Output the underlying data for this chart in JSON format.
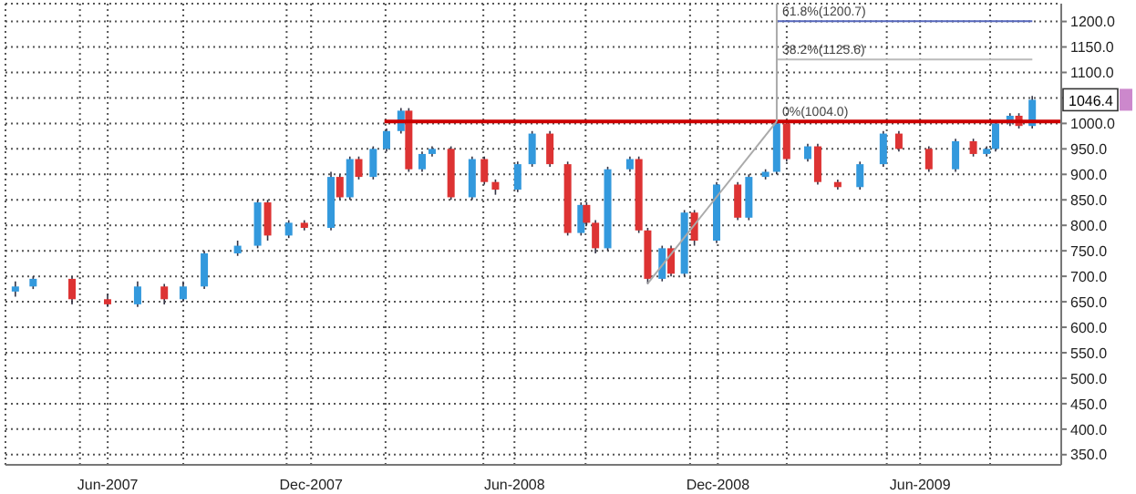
{
  "chart_data": {
    "type": "candlestick",
    "x": [
      "2007-03-10",
      "2007-03-26",
      "2007-04-30",
      "2007-06-01",
      "2007-06-28",
      "2007-07-22",
      "2007-08-08",
      "2007-08-27",
      "2007-09-26",
      "2007-10-14",
      "2007-10-23",
      "2007-11-11",
      "2007-11-25",
      "2007-12-19",
      "2007-12-27",
      "2008-01-05",
      "2008-01-13",
      "2008-01-26",
      "2008-02-07",
      "2008-02-20",
      "2008-02-27",
      "2008-03-10",
      "2008-03-19",
      "2008-04-05",
      "2008-04-24",
      "2008-05-05",
      "2008-05-15",
      "2008-06-04",
      "2008-06-17",
      "2008-07-03",
      "2008-07-19",
      "2008-07-31",
      "2008-08-05",
      "2008-08-13",
      "2008-08-24",
      "2008-09-13",
      "2008-09-21",
      "2008-09-29",
      "2008-10-12",
      "2008-10-20",
      "2008-11-01",
      "2008-11-10",
      "2008-11-30",
      "2008-12-19",
      "2008-12-29",
      "2009-01-13",
      "2009-01-23",
      "2009-02-01",
      "2009-02-20",
      "2009-03-01",
      "2009-03-19",
      "2009-04-08",
      "2009-04-29",
      "2009-05-13",
      "2009-06-09",
      "2009-07-03",
      "2009-07-19",
      "2009-07-31",
      "2009-08-08",
      "2009-08-21",
      "2009-08-29",
      "2009-09-10"
    ],
    "ohlc": [
      [
        670,
        690,
        660,
        680
      ],
      [
        680,
        700,
        675,
        695
      ],
      [
        695,
        700,
        645,
        655
      ],
      [
        655,
        665,
        640,
        645
      ],
      [
        645,
        690,
        640,
        680
      ],
      [
        680,
        685,
        645,
        655
      ],
      [
        655,
        690,
        650,
        680
      ],
      [
        680,
        750,
        675,
        745
      ],
      [
        745,
        770,
        740,
        760
      ],
      [
        760,
        850,
        755,
        845
      ],
      [
        845,
        850,
        770,
        780
      ],
      [
        780,
        810,
        775,
        805
      ],
      [
        805,
        810,
        790,
        795
      ],
      [
        795,
        905,
        790,
        895
      ],
      [
        895,
        900,
        850,
        855
      ],
      [
        855,
        935,
        850,
        930
      ],
      [
        930,
        935,
        890,
        895
      ],
      [
        895,
        955,
        890,
        950
      ],
      [
        950,
        990,
        945,
        985
      ],
      [
        985,
        1030,
        980,
        1025
      ],
      [
        1025,
        1030,
        905,
        910
      ],
      [
        910,
        945,
        905,
        940
      ],
      [
        940,
        955,
        935,
        950
      ],
      [
        950,
        955,
        850,
        855
      ],
      [
        855,
        935,
        850,
        930
      ],
      [
        930,
        935,
        880,
        885
      ],
      [
        885,
        890,
        860,
        870
      ],
      [
        870,
        925,
        865,
        920
      ],
      [
        920,
        985,
        915,
        980
      ],
      [
        980,
        985,
        915,
        920
      ],
      [
        920,
        925,
        780,
        785
      ],
      [
        785,
        845,
        780,
        840
      ],
      [
        840,
        845,
        800,
        805
      ],
      [
        805,
        810,
        745,
        755
      ],
      [
        755,
        915,
        750,
        910
      ],
      [
        910,
        935,
        905,
        930
      ],
      [
        930,
        935,
        785,
        790
      ],
      [
        790,
        795,
        685,
        695
      ],
      [
        695,
        760,
        690,
        755
      ],
      [
        755,
        760,
        700,
        705
      ],
      [
        705,
        830,
        700,
        825
      ],
      [
        825,
        830,
        760,
        770
      ],
      [
        770,
        885,
        765,
        880
      ],
      [
        880,
        885,
        810,
        815
      ],
      [
        815,
        900,
        810,
        895
      ],
      [
        895,
        910,
        890,
        905
      ],
      [
        905,
        1005,
        900,
        1000
      ],
      [
        1000,
        1005,
        925,
        930
      ],
      [
        930,
        960,
        925,
        955
      ],
      [
        955,
        960,
        880,
        885
      ],
      [
        885,
        890,
        870,
        875
      ],
      [
        875,
        925,
        870,
        920
      ],
      [
        920,
        985,
        915,
        980
      ],
      [
        980,
        985,
        945,
        950
      ],
      [
        950,
        955,
        905,
        910
      ],
      [
        910,
        970,
        905,
        965
      ],
      [
        965,
        970,
        935,
        940
      ],
      [
        940,
        955,
        935,
        950
      ],
      [
        950,
        1005,
        945,
        1000
      ],
      [
        1000,
        1020,
        995,
        1015
      ],
      [
        1015,
        1020,
        990,
        995
      ],
      [
        995,
        1054,
        990,
        1046.4
      ]
    ],
    "colors": [
      "#3399dd",
      "#3399dd",
      "#dd3333",
      "#dd3333",
      "#3399dd",
      "#dd3333",
      "#3399dd",
      "#3399dd",
      "#3399dd",
      "#3399dd",
      "#dd3333",
      "#3399dd",
      "#dd3333",
      "#3399dd",
      "#dd3333",
      "#3399dd",
      "#dd3333",
      "#3399dd",
      "#3399dd",
      "#3399dd",
      "#dd3333",
      "#3399dd",
      "#3399dd",
      "#dd3333",
      "#3399dd",
      "#dd3333",
      "#dd3333",
      "#3399dd",
      "#3399dd",
      "#dd3333",
      "#dd3333",
      "#3399dd",
      "#dd3333",
      "#dd3333",
      "#3399dd",
      "#3399dd",
      "#dd3333",
      "#dd3333",
      "#3399dd",
      "#dd3333",
      "#3399dd",
      "#dd3333",
      "#3399dd",
      "#dd3333",
      "#3399dd",
      "#3399dd",
      "#3399dd",
      "#dd3333",
      "#3399dd",
      "#dd3333",
      "#dd3333",
      "#3399dd",
      "#3399dd",
      "#dd3333",
      "#dd3333",
      "#3399dd",
      "#dd3333",
      "#3399dd",
      "#3399dd",
      "#3399dd",
      "#dd3333",
      "#3399dd"
    ],
    "series": [
      {
        "type": "line",
        "color": "#cc0000",
        "x": [
          "2008-02-05",
          "2009-10-06"
        ],
        "values": [
          1004,
          1004
        ]
      },
      {
        "type": "line",
        "color": "#5566bb",
        "x": [
          "2009-01-23",
          "2009-09-10"
        ],
        "values": [
          1200.7,
          1200.7
        ]
      },
      {
        "type": "line",
        "color": "#bbbbbb",
        "x": [
          "2009-01-23",
          "2009-09-10"
        ],
        "values": [
          1125.6,
          1125.6
        ]
      },
      {
        "type": "line",
        "color": "#aaaaaa",
        "x": [
          "2008-09-29",
          "2009-01-23"
        ],
        "values": [
          686,
          1004
        ]
      },
      {
        "type": "line",
        "color": "#aaaaaa",
        "x": [
          "2009-01-23",
          "2009-01-23"
        ],
        "values": [
          1004,
          1235
        ]
      }
    ],
    "annotations": [
      {
        "text": "61.8%(1200.7)",
        "x": "2009-01-23",
        "y": 1200.7
      },
      {
        "text": "38.2%(1125.6)",
        "x": "2009-01-23",
        "y": 1125.6
      },
      {
        "text": "0%(1004.0)",
        "x": "2009-01-23",
        "y": 1004
      },
      "1046.4"
    ],
    "xlim": [
      "2007-03-01",
      "2009-10-06"
    ],
    "xticks": [
      {
        "value": "2007-05-07",
        "label": null
      },
      {
        "value": "2007-06-01",
        "label": "Jun-2007"
      },
      {
        "value": "2007-08-08",
        "label": null
      },
      {
        "value": "2007-11-09",
        "label": null
      },
      {
        "value": "2007-12-01",
        "label": "Dec-2007"
      },
      {
        "value": "2008-02-06",
        "label": null
      },
      {
        "value": "2008-05-04",
        "label": null
      },
      {
        "value": "2008-06-01",
        "label": "Jun-2008"
      },
      {
        "value": "2008-08-04",
        "label": null
      },
      {
        "value": "2008-11-06",
        "label": null
      },
      {
        "value": "2008-12-01",
        "label": "Dec-2008"
      },
      {
        "value": "2009-02-01",
        "label": null
      },
      {
        "value": "2009-05-02",
        "label": null
      },
      {
        "value": "2009-06-01",
        "label": "Jun-2009"
      },
      {
        "value": "2009-08-03",
        "label": null
      }
    ],
    "ylim": [
      330,
      1235
    ],
    "yticks": [
      {
        "value": 350,
        "label": "350.0"
      },
      {
        "value": 400,
        "label": "400.0"
      },
      {
        "value": 450,
        "label": "450.0"
      },
      {
        "value": 500,
        "label": "500.0"
      },
      {
        "value": 550,
        "label": "550.0"
      },
      {
        "value": 600,
        "label": "600.0"
      },
      {
        "value": 650,
        "label": "650.0"
      },
      {
        "value": 700,
        "label": "700.0"
      },
      {
        "value": 750,
        "label": "750.0"
      },
      {
        "value": 800,
        "label": "800.0"
      },
      {
        "value": 850,
        "label": "850.0"
      },
      {
        "value": 900,
        "label": "900.0"
      },
      {
        "value": 950,
        "label": "950.0"
      },
      {
        "value": 1000,
        "label": "1000.0"
      },
      {
        "value": 1050,
        "label": null
      },
      {
        "value": 1100,
        "label": "1100.0"
      },
      {
        "value": 1150,
        "label": "1150.0"
      },
      {
        "value": 1200,
        "label": "1200.0"
      }
    ],
    "grid": true
  }
}
